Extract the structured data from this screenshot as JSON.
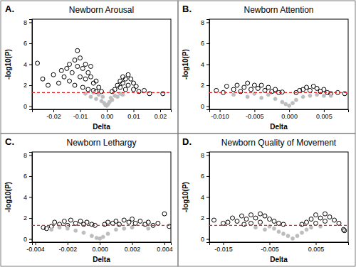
{
  "chart_data": [
    {
      "type": "scatter",
      "panel_label": "A.",
      "title": "Newborn Arousal",
      "x_label": "Delta",
      "y_label": "-log10(P)",
      "xlim": [
        -0.028,
        0.024
      ],
      "xticks": [
        -0.02,
        -0.01,
        {
          "value": 0,
          "label": "0.00"
        },
        0.01,
        0.02
      ],
      "ylim": [
        -0.3,
        8.3
      ],
      "yticks": [
        0,
        2,
        4,
        6,
        8
      ],
      "hline": {
        "value": 1.3,
        "color": "#e8202a",
        "line_style": "dashed"
      },
      "series": [
        {
          "color": "#000000",
          "marker": "open-circle",
          "x": [
            -0.026,
            -0.024,
            -0.022,
            -0.02,
            -0.018,
            -0.017,
            -0.016,
            -0.015,
            -0.014,
            -0.014,
            -0.013,
            -0.012,
            -0.012,
            -0.011,
            -0.011,
            -0.01,
            -0.01,
            -0.009,
            -0.009,
            -0.008,
            -0.008,
            -0.007,
            -0.007,
            -0.006,
            -0.006,
            -0.005,
            -0.005,
            -0.004,
            -0.004,
            -0.003,
            -0.002,
            0.002,
            0.003,
            0.004,
            0.005,
            0.005,
            0.006,
            0.006,
            0.007,
            0.007,
            0.008,
            0.008,
            0.009,
            0.01,
            0.01,
            0.011,
            0.012,
            0.014,
            0.016,
            0.021
          ],
          "values": [
            4.1,
            2.6,
            2.0,
            3.0,
            2.2,
            3.4,
            2.8,
            3.6,
            2.4,
            4.0,
            3.2,
            4.4,
            2.0,
            3.8,
            5.3,
            4.6,
            2.8,
            3.6,
            1.8,
            4.0,
            2.6,
            3.2,
            1.6,
            2.8,
            3.8,
            2.2,
            1.5,
            2.4,
            1.4,
            1.8,
            1.4,
            1.4,
            1.6,
            2.0,
            1.8,
            2.4,
            2.2,
            2.8,
            2.6,
            1.6,
            3.0,
            2.0,
            2.6,
            2.2,
            1.6,
            1.9,
            1.4,
            1.5,
            1.2,
            1.2
          ]
        },
        {
          "color": "#bdbdbd",
          "marker": "circle",
          "x": [
            -0.008,
            -0.006,
            -0.005,
            -0.004,
            -0.003,
            -0.002,
            -0.0015,
            -0.001,
            -0.0005,
            0,
            0.0005,
            0.001,
            0.0015,
            0.002,
            0.003,
            0.004,
            0.005,
            0.006
          ],
          "values": [
            1.2,
            0.9,
            1.3,
            0.7,
            1.1,
            0.5,
            0.9,
            0.3,
            0.1,
            0.05,
            0.2,
            0.4,
            0.8,
            0.6,
            1.0,
            0.9,
            1.2,
            1.1
          ]
        }
      ]
    },
    {
      "type": "scatter",
      "panel_label": "B.",
      "title": "Newborn Attention",
      "x_label": "Delta",
      "y_label": "-log10(P)",
      "xlim": [
        -0.0115,
        0.0085
      ],
      "xticks": [
        {
          "value": -0.01,
          "label": "-0.010"
        },
        -0.005,
        {
          "value": 0,
          "label": "0.000"
        },
        0.005
      ],
      "ylim": [
        -0.3,
        8.3
      ],
      "yticks": [
        0,
        2,
        4,
        6,
        8
      ],
      "hline": {
        "value": 1.3,
        "color": "#e8202a",
        "line_style": "dashed"
      },
      "series": [
        {
          "color": "#000000",
          "marker": "open-circle",
          "x": [
            -0.0105,
            -0.0095,
            -0.009,
            -0.008,
            -0.0075,
            -0.007,
            -0.0065,
            -0.006,
            -0.0055,
            -0.005,
            -0.0045,
            -0.004,
            -0.0035,
            -0.003,
            -0.0025,
            -0.002,
            -0.0015,
            -0.001,
            0.001,
            0.0015,
            0.002,
            0.0025,
            0.003,
            0.0035,
            0.004,
            0.0045,
            0.005,
            0.0055,
            0.006,
            0.007,
            0.008
          ],
          "values": [
            1.5,
            1.3,
            1.9,
            1.6,
            2.0,
            1.4,
            1.8,
            2.2,
            1.6,
            2.0,
            1.7,
            2.0,
            1.5,
            1.8,
            1.4,
            1.6,
            1.3,
            1.35,
            1.3,
            1.5,
            1.6,
            1.8,
            1.5,
            1.9,
            1.7,
            1.4,
            1.6,
            1.3,
            1.2,
            1.3,
            1.2
          ]
        },
        {
          "color": "#bdbdbd",
          "marker": "circle",
          "x": [
            -0.008,
            -0.006,
            -0.005,
            -0.004,
            -0.003,
            -0.002,
            -0.001,
            -0.0005,
            0,
            0.0005,
            0.001,
            0.002,
            0.003,
            0.004,
            0.005,
            0.006
          ],
          "values": [
            1.1,
            0.9,
            1.2,
            0.8,
            1.1,
            0.7,
            0.4,
            0.2,
            0.05,
            0.3,
            0.6,
            0.9,
            1.0,
            1.1,
            1.0,
            1.0
          ]
        }
      ]
    },
    {
      "type": "scatter",
      "panel_label": "C.",
      "title": "Newborn Lethargy",
      "x_label": "Delta",
      "y_label": "-log10(P)",
      "xlim": [
        -0.0042,
        0.0044
      ],
      "xticks": [
        -0.004,
        -0.002,
        {
          "value": 0,
          "label": "0.000"
        },
        0.002,
        0.004
      ],
      "ylim": [
        -0.3,
        8.3
      ],
      "yticks": [
        0,
        2,
        4,
        6,
        8
      ],
      "hline": {
        "value": 1.3,
        "color": "#e8202a",
        "line_style": "dashed"
      },
      "series": [
        {
          "color": "#000000",
          "marker": "open-circle",
          "x": [
            -0.0035,
            -0.0033,
            -0.003,
            -0.0028,
            -0.0025,
            -0.0022,
            -0.002,
            -0.0018,
            -0.0015,
            -0.0012,
            -0.001,
            -0.0008,
            -0.0005,
            -0.0003,
            0.0003,
            0.0005,
            0.0008,
            0.001,
            0.0012,
            0.0015,
            0.0018,
            0.002,
            0.0022,
            0.0025,
            0.0028,
            0.003,
            0.0033,
            0.0036,
            0.004,
            0.0043
          ],
          "values": [
            1.1,
            1.0,
            1.2,
            1.6,
            1.4,
            1.7,
            1.3,
            1.8,
            1.5,
            1.7,
            1.4,
            1.6,
            1.4,
            1.3,
            1.4,
            1.6,
            1.5,
            1.7,
            1.4,
            1.8,
            1.6,
            1.9,
            1.5,
            1.7,
            1.4,
            1.6,
            1.3,
            1.5,
            2.4,
            1.2
          ]
        },
        {
          "color": "#bdbdbd",
          "marker": "circle",
          "x": [
            -0.003,
            -0.0025,
            -0.002,
            -0.0015,
            -0.001,
            -0.0005,
            -0.0002,
            0,
            0.0002,
            0.0005,
            0.001,
            0.0015,
            0.002,
            0.003
          ],
          "values": [
            0.9,
            1.1,
            1.0,
            0.8,
            0.6,
            0.3,
            0.1,
            0.05,
            0.2,
            0.5,
            0.9,
            1.0,
            1.1,
            1.0
          ]
        }
      ]
    },
    {
      "type": "scatter",
      "panel_label": "D.",
      "title": "Newborn Quality of Movement",
      "x_label": "Delta",
      "y_label": "-log10(P)",
      "xlim": [
        -0.018,
        0.012
      ],
      "xticks": [
        -0.015,
        -0.005,
        0.005
      ],
      "ylim": [
        -0.3,
        8.3
      ],
      "yticks": [
        0,
        2,
        4,
        6,
        8
      ],
      "hline": {
        "value": 1.3,
        "color": "#e8202a",
        "line_style": "dashed"
      },
      "series": [
        {
          "color": "#000000",
          "marker": "open-circle",
          "x": [
            -0.017,
            -0.015,
            -0.014,
            -0.013,
            -0.012,
            -0.011,
            -0.0105,
            -0.01,
            -0.009,
            -0.009,
            -0.008,
            -0.007,
            -0.007,
            -0.006,
            -0.005,
            -0.004,
            -0.003,
            -0.002,
            0.002,
            0.003,
            0.004,
            0.005,
            0.005,
            0.006,
            0.007,
            0.007,
            0.008,
            0.009,
            0.01,
            0.011,
            0.0112
          ],
          "values": [
            1.8,
            1.5,
            1.6,
            2.0,
            1.7,
            2.2,
            1.4,
            1.9,
            2.3,
            1.5,
            2.0,
            2.4,
            1.6,
            2.2,
            1.9,
            1.7,
            1.5,
            1.4,
            1.4,
            1.6,
            1.9,
            2.3,
            1.5,
            2.0,
            2.4,
            1.7,
            2.1,
            1.8,
            1.5,
            0.9,
            0.8
          ]
        },
        {
          "color": "#bdbdbd",
          "marker": "circle",
          "x": [
            -0.008,
            -0.006,
            -0.005,
            -0.004,
            -0.003,
            -0.002,
            -0.001,
            0,
            0.001,
            0.002,
            0.003,
            0.004,
            0.006
          ],
          "values": [
            1.1,
            0.9,
            1.2,
            1.0,
            0.7,
            0.5,
            0.3,
            0.05,
            0.3,
            0.6,
            0.9,
            1.1,
            1.2
          ]
        }
      ]
    }
  ]
}
